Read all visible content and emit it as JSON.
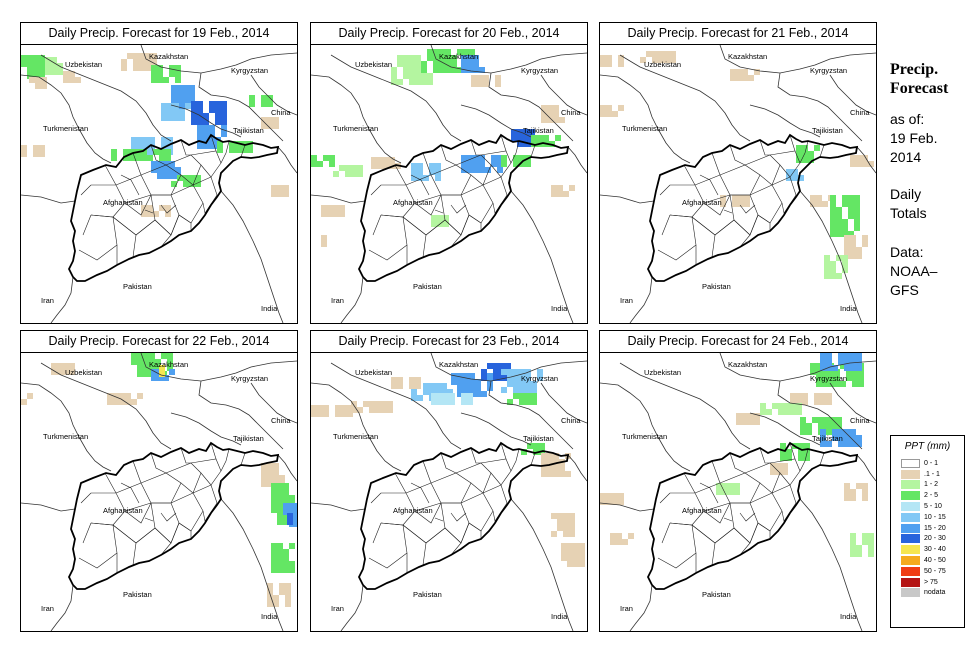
{
  "panels": [
    {
      "title": "Daily Precip. Forecast for  19 Feb., 2014"
    },
    {
      "title": "Daily Precip. Forecast for  20 Feb., 2014"
    },
    {
      "title": "Daily Precip. Forecast for  21 Feb., 2014"
    },
    {
      "title": "Daily Precip. Forecast for  22 Feb., 2014"
    },
    {
      "title": "Daily Precip. Forecast for  23 Feb., 2014"
    },
    {
      "title": "Daily Precip. Forecast for  24 Feb., 2014"
    }
  ],
  "country_labels": {
    "kazakhstan": "Kazakhstan",
    "uzbekistan": "Uzbekistan",
    "kyrgyzstan": "Kyrgyzstan",
    "china": "China",
    "turkmenistan": "Turkmenistan",
    "tajikistan": "Tajikistan",
    "afghanistan": "Afghanistan",
    "pakistan": "Pakistan",
    "iran": "Iran",
    "india": "India"
  },
  "side": {
    "title": "Precip. Forecast",
    "as_of_line1": "as of:",
    "as_of_line2": "19 Feb.",
    "as_of_line3": "2014",
    "daily_line1": "Daily",
    "daily_line2": "Totals",
    "data_line1": "Data:",
    "data_line2": "NOAA–",
    "data_line3": "GFS"
  },
  "legend": {
    "title": "PPT (mm)",
    "items": [
      {
        "label": "0 - 1",
        "color": "#ffffff"
      },
      {
        "label": ".1 - 1",
        "color": "#e6d2b4"
      },
      {
        "label": "1 - 2",
        "color": "#b4f5a0"
      },
      {
        "label": "2 - 5",
        "color": "#64e664"
      },
      {
        "label": "5 - 10",
        "color": "#b4e6f5"
      },
      {
        "label": "10 - 15",
        "color": "#82c8f5"
      },
      {
        "label": "15 - 20",
        "color": "#50a0f0"
      },
      {
        "label": "20 - 30",
        "color": "#2864dc"
      },
      {
        "label": "30 - 40",
        "color": "#f5e650"
      },
      {
        "label": "40 - 50",
        "color": "#f5aa1e"
      },
      {
        "label": "50 - 75",
        "color": "#f03c14"
      },
      {
        "label": "> 75",
        "color": "#b41414"
      },
      {
        "label": "nodata",
        "color": "#c8c8c8"
      }
    ]
  },
  "precip_cells": [
    [
      "g",
      "g",
      "g",
      "g",
      "b",
      "b",
      "l",
      "t",
      "c",
      "c",
      "c",
      "w",
      "w",
      "c",
      "a",
      "w",
      "w",
      "w",
      "w",
      "w",
      "w",
      "w",
      "w",
      "w",
      "w",
      "w",
      "w",
      "w",
      "w",
      "w",
      "w",
      "w",
      "w",
      "w",
      "w",
      "w",
      "w",
      "w",
      "w",
      "w",
      "w",
      "w",
      "w",
      "w",
      "w",
      "w",
      "w",
      "w",
      "w",
      "w",
      "w",
      "w",
      "w",
      "w",
      "w",
      "w",
      "w",
      "w",
      "w",
      "w",
      "w",
      "w",
      "w",
      "w",
      "w",
      "w",
      "w",
      "w",
      "w",
      "w",
      "w",
      "w",
      "w",
      "w",
      "w"
    ]
  ]
}
